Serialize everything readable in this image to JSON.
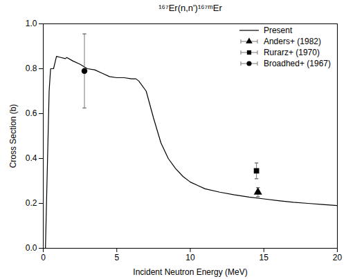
{
  "chart_data": {
    "type": "line",
    "title": "¹⁶⁷Er(n,n')¹⁶⁷ᵐEr",
    "x_label": "Incident Neutron Energy (MeV)",
    "y_label": "Cross Section (b)",
    "xlim": [
      0,
      20
    ],
    "xticks": [
      0,
      5,
      10,
      15,
      20
    ],
    "ylim": [
      0,
      1
    ],
    "yticks": [
      {
        "value": 0,
        "label": "0.0"
      },
      0.2,
      0.4,
      0.6,
      0.8,
      {
        "value": 1,
        "label": "1.0"
      }
    ],
    "legend": "upper right",
    "series": [
      {
        "name": "Present",
        "type": "line",
        "color": "#000000",
        "line_style": "solid",
        "x": [
          0.15,
          0.4,
          0.5,
          0.7,
          0.9,
          1.2,
          1.5,
          1.6,
          2,
          2.5,
          3,
          3.5,
          4,
          4.5,
          5,
          5.5,
          6,
          6.3,
          6.5,
          7,
          7.5,
          8,
          8.5,
          9,
          9.5,
          10,
          10.5,
          11,
          12,
          13,
          14,
          15,
          16,
          17,
          18,
          19,
          20
        ],
        "values": [
          0,
          0.7,
          0.8,
          0.8,
          0.855,
          0.85,
          0.845,
          0.85,
          0.835,
          0.82,
          0.8,
          0.795,
          0.78,
          0.765,
          0.76,
          0.76,
          0.755,
          0.755,
          0.745,
          0.7,
          0.58,
          0.47,
          0.4,
          0.355,
          0.32,
          0.295,
          0.28,
          0.265,
          0.25,
          0.238,
          0.228,
          0.22,
          0.212,
          0.205,
          0.2,
          0.195,
          0.19
        ]
      },
      {
        "name": "Anders+ (1982)",
        "type": "scatter",
        "color": "#000000",
        "marker": "triangle",
        "x": [
          14.6
        ],
        "values": [
          0.25
        ],
        "y_error": [
          0.02
        ]
      },
      {
        "name": "Rurarz+ (1970)",
        "type": "scatter",
        "color": "#000000",
        "marker": "square",
        "x": [
          14.5
        ],
        "values": [
          0.345
        ],
        "y_error": [
          0.035
        ]
      },
      {
        "name": "Broadhed+ (1967)",
        "type": "scatter",
        "color": "#000000",
        "marker": "circle",
        "x": [
          2.8
        ],
        "values": [
          0.79
        ],
        "y_error": [
          0.165
        ]
      }
    ]
  }
}
